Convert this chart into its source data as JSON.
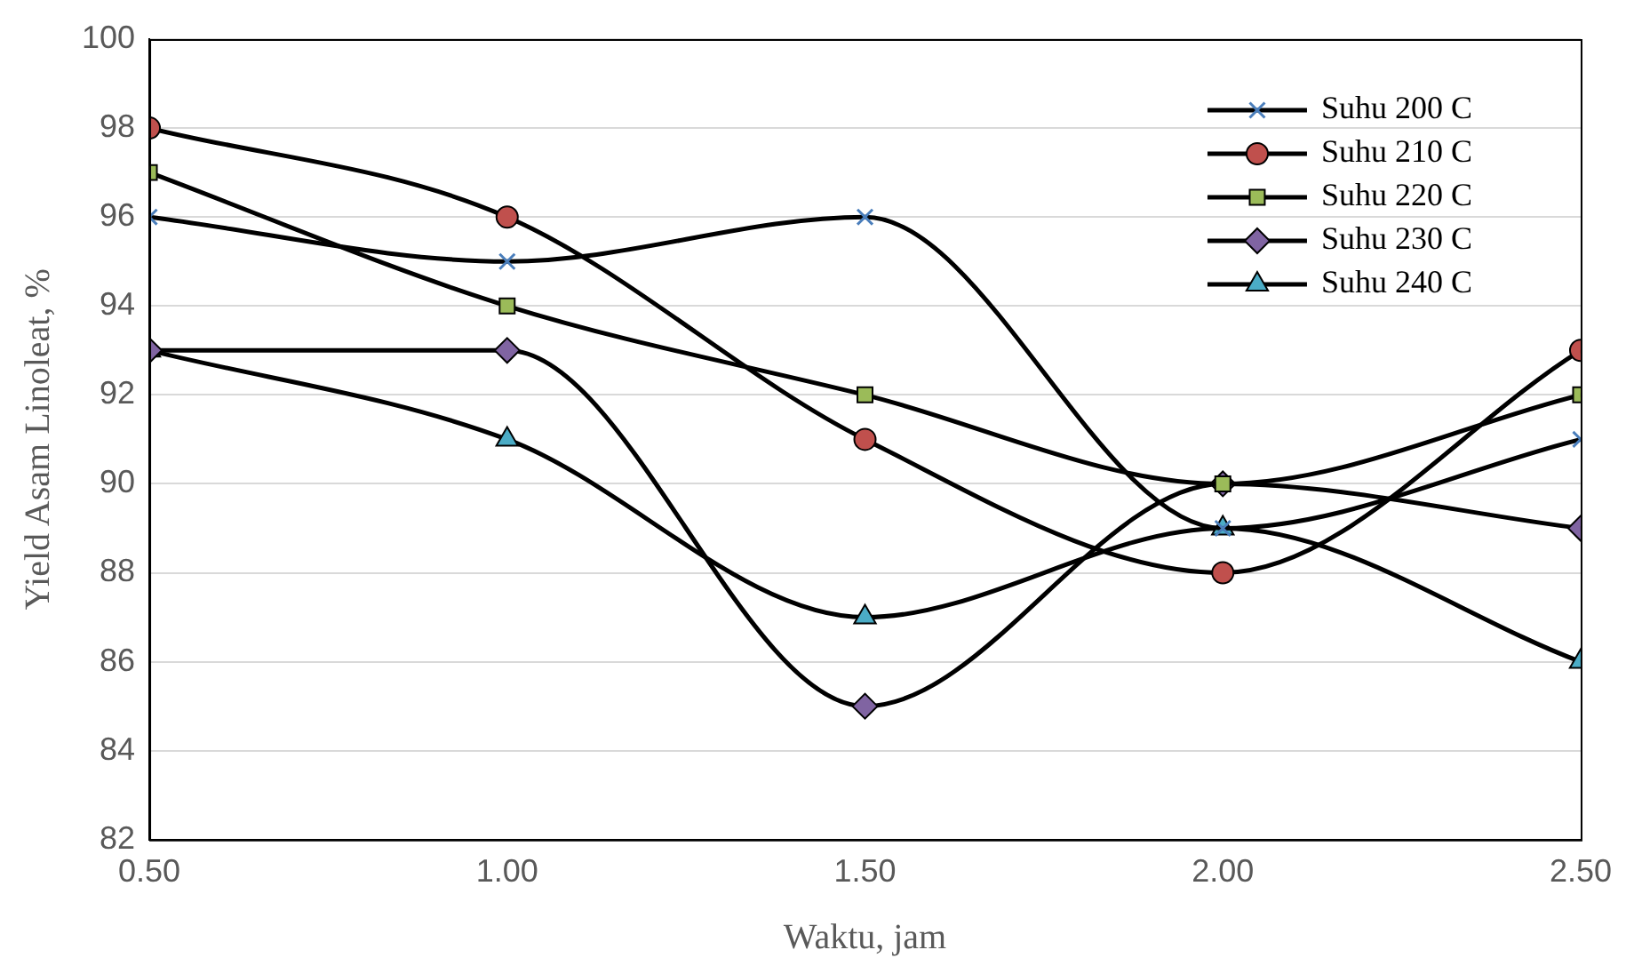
{
  "chart_data": {
    "type": "line",
    "xlabel": "Waktu, jam",
    "ylabel": "Yield Asam Linoleat, %",
    "x": [
      0.5,
      1.0,
      1.5,
      2.0,
      2.5
    ],
    "xlim": [
      0.5,
      2.5
    ],
    "xticks": [
      {
        "value": 0.5,
        "label": "0.50"
      },
      {
        "value": 1.0,
        "label": "1.00"
      },
      {
        "value": 1.5,
        "label": "1.50"
      },
      {
        "value": 2.0,
        "label": "2.00"
      },
      {
        "value": 2.5,
        "label": "2.50"
      }
    ],
    "ylim": [
      82,
      100
    ],
    "yticks": [
      82,
      84,
      86,
      88,
      90,
      92,
      94,
      96,
      98,
      100
    ],
    "grid": "y",
    "legend": "top right",
    "line_style": "solid",
    "series": [
      {
        "name": "Suhu 200 C",
        "color": "#4a7ebb",
        "marker": "cross",
        "values": [
          96,
          95,
          96,
          89,
          91
        ]
      },
      {
        "name": "Suhu 210 C",
        "color": "#c0504d",
        "marker": "circle",
        "values": [
          98,
          96,
          91,
          88,
          93
        ]
      },
      {
        "name": "Suhu 220 C",
        "color": "#9bbb59",
        "marker": "square",
        "values": [
          97,
          94,
          92,
          90,
          92
        ]
      },
      {
        "name": "Suhu 230 C",
        "color": "#8064a2",
        "marker": "diamond",
        "values": [
          93,
          93,
          85,
          90,
          89
        ]
      },
      {
        "name": "Suhu 240 C",
        "color": "#4bacc6",
        "marker": "triangle",
        "values": [
          93,
          91,
          87,
          89,
          86
        ]
      }
    ]
  }
}
